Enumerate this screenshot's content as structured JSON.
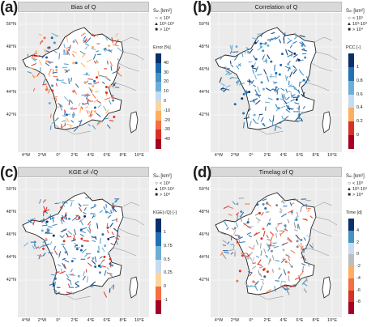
{
  "axes": {
    "y_ticks": [
      "50°N",
      "48°N",
      "46°N",
      "44°N",
      "42°N"
    ],
    "x_ticks": [
      "4°W",
      "2°W",
      "0°",
      "2°E",
      "4°E",
      "6°E",
      "8°E",
      "10°E"
    ]
  },
  "legend_size": {
    "title": "Sₘ [km²]",
    "items": [
      {
        "symbol": "○",
        "label": "< 10³"
      },
      {
        "symbol": "▲",
        "label": "10³-10⁴"
      },
      {
        "symbol": "■",
        "label": "> 10⁴"
      }
    ]
  },
  "panels": [
    {
      "tag": "(a)",
      "title": "Bias of Q",
      "colorbar_title": "Error [%]",
      "colorbar_labels": [
        "40",
        "30",
        "20",
        "10",
        "0",
        "-10",
        "-20",
        "-30",
        "-40"
      ],
      "colorbar_colors": [
        "#08306b",
        "#2166ac",
        "#4393c3",
        "#6baed6",
        "#c6dbef",
        "#fdd49e",
        "#fdae61",
        "#f46d43",
        "#d73027",
        "#a50026"
      ],
      "dot_palette": [
        "#2166ac",
        "#4393c3",
        "#6baed6",
        "#fdae61",
        "#f46d43",
        "#d73027"
      ]
    },
    {
      "tag": "(b)",
      "title": "Correlation of Q",
      "colorbar_title": "PCC [-]",
      "colorbar_labels": [
        "1",
        "0.8",
        "0.6",
        "0.4",
        "0.2",
        "0"
      ],
      "colorbar_colors": [
        "#08306b",
        "#2171b5",
        "#6baed6",
        "#c6dbef",
        "#fdae61",
        "#d73027",
        "#a50026"
      ],
      "dot_palette": [
        "#08306b",
        "#2171b5",
        "#4393c3",
        "#6baed6",
        "#2166ac"
      ]
    },
    {
      "tag": "(c)",
      "title": "KGE of √Q",
      "colorbar_title": "KGE(√Q) [-]",
      "colorbar_labels": [
        "1",
        "0.75",
        "0.5",
        "0.25",
        "0",
        "-1"
      ],
      "colorbar_colors": [
        "#08306b",
        "#2171b5",
        "#6baed6",
        "#c6dbef",
        "#fdd49e",
        "#f46d43",
        "#a50026"
      ],
      "dot_palette": [
        "#08306b",
        "#2171b5",
        "#4393c3",
        "#6baed6",
        "#2166ac",
        "#d73027"
      ]
    },
    {
      "tag": "(d)",
      "title": "Timelag of Q",
      "colorbar_title": "Time [d]",
      "colorbar_labels": [
        "4",
        "2",
        "0",
        "-2",
        "-4",
        "-6",
        "-8"
      ],
      "colorbar_colors": [
        "#08306b",
        "#4393c3",
        "#c6dbef",
        "#bdbdbd",
        "#fdae61",
        "#f46d43",
        "#d73027",
        "#a50026"
      ],
      "dot_palette": [
        "#9e9e9e",
        "#bdbdbd",
        "#8c8c8c",
        "#f46d43",
        "#d73027",
        "#2166ac",
        "#4393c3"
      ]
    }
  ]
}
